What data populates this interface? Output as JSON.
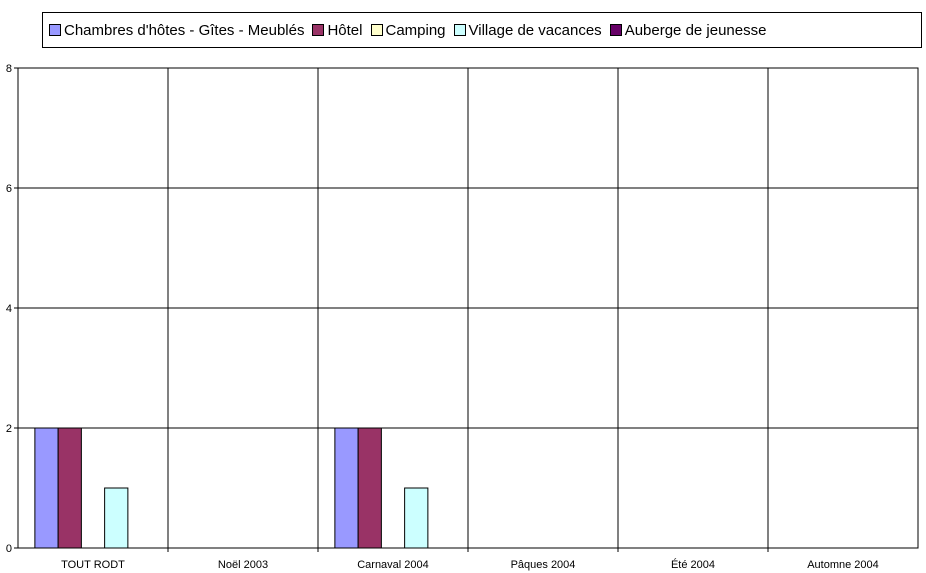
{
  "chart_data": {
    "type": "bar",
    "title": "",
    "xlabel": "",
    "ylabel": "",
    "ylim": [
      0,
      8
    ],
    "yticks": [
      0,
      2,
      4,
      6,
      8
    ],
    "grid": true,
    "legend_position": "top",
    "categories": [
      "TOUT RODT",
      "Noël 2003",
      "Carnaval 2004",
      "Pâques 2004",
      "Été 2004",
      "Automne 2004"
    ],
    "series": [
      {
        "name": "Chambres d'hôtes - Gîtes - Meublés",
        "color": "#9999ff",
        "values": [
          2,
          0,
          2,
          0,
          0,
          0
        ]
      },
      {
        "name": "Hôtel",
        "color": "#993366",
        "values": [
          2,
          0,
          2,
          0,
          0,
          0
        ]
      },
      {
        "name": "Camping",
        "color": "#ffffcc",
        "values": [
          0,
          0,
          0,
          0,
          0,
          0
        ]
      },
      {
        "name": "Village de vacances",
        "color": "#ccffff",
        "values": [
          1,
          0,
          1,
          0,
          0,
          0
        ]
      },
      {
        "name": "Auberge de jeunesse",
        "color": "#660066",
        "values": [
          0,
          0,
          0,
          0,
          0,
          0
        ]
      }
    ]
  }
}
